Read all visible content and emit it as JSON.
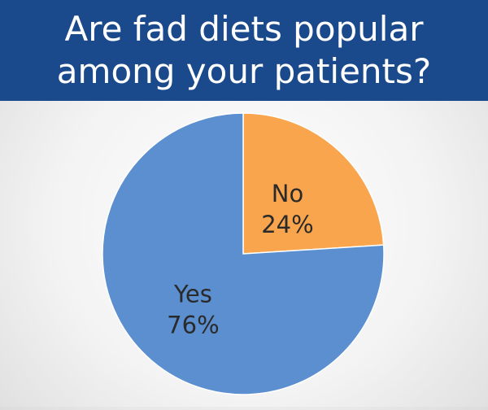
{
  "title": "Are fad diets popular among your patients?",
  "colors": {
    "title_bar": "#1b4a8c",
    "yes_slice": "#5b8fd0",
    "no_slice": "#f8a54d",
    "label_text": "#2a2a2a"
  },
  "chart_data": {
    "type": "pie",
    "title": "Are fad diets popular among your patients?",
    "slices": [
      {
        "label": "No",
        "value": 24,
        "percent_label": "24%",
        "color": "#f8a54d"
      },
      {
        "label": "Yes",
        "value": 76,
        "percent_label": "76%",
        "color": "#5b8fd0"
      }
    ],
    "start_angle_deg": 0,
    "direction": "clockwise",
    "legend": "none"
  }
}
